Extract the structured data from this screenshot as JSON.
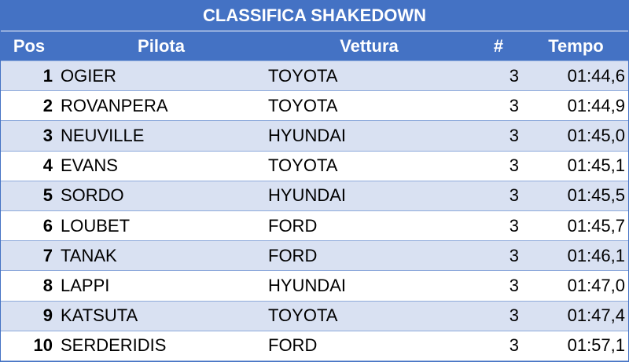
{
  "title": "CLASSIFICA SHAKEDOWN",
  "table": {
    "headers": [
      "Pos",
      "Pilota",
      "Vettura",
      "#",
      "Tempo"
    ],
    "rows": [
      [
        1,
        "OGIER",
        "TOYOTA",
        3,
        "01:44,6"
      ],
      [
        2,
        "ROVANPERA",
        "TOYOTA",
        3,
        "01:44,9"
      ],
      [
        3,
        "NEUVILLE",
        "HYUNDAI",
        3,
        "01:45,0"
      ],
      [
        4,
        "EVANS",
        "TOYOTA",
        3,
        "01:45,1"
      ],
      [
        5,
        "SORDO",
        "HYUNDAI",
        3,
        "01:45,5"
      ],
      [
        6,
        "LOUBET",
        "FORD",
        3,
        "01:45,7"
      ],
      [
        7,
        "TANAK",
        "FORD",
        3,
        "01:46,1"
      ],
      [
        8,
        "LAPPI",
        "HYUNDAI",
        3,
        "01:47,0"
      ],
      [
        9,
        "KATSUTA",
        "TOYOTA",
        3,
        "01:47,4"
      ],
      [
        10,
        "SERDERIDIS",
        "FORD",
        3,
        "01:57,1"
      ]
    ]
  }
}
